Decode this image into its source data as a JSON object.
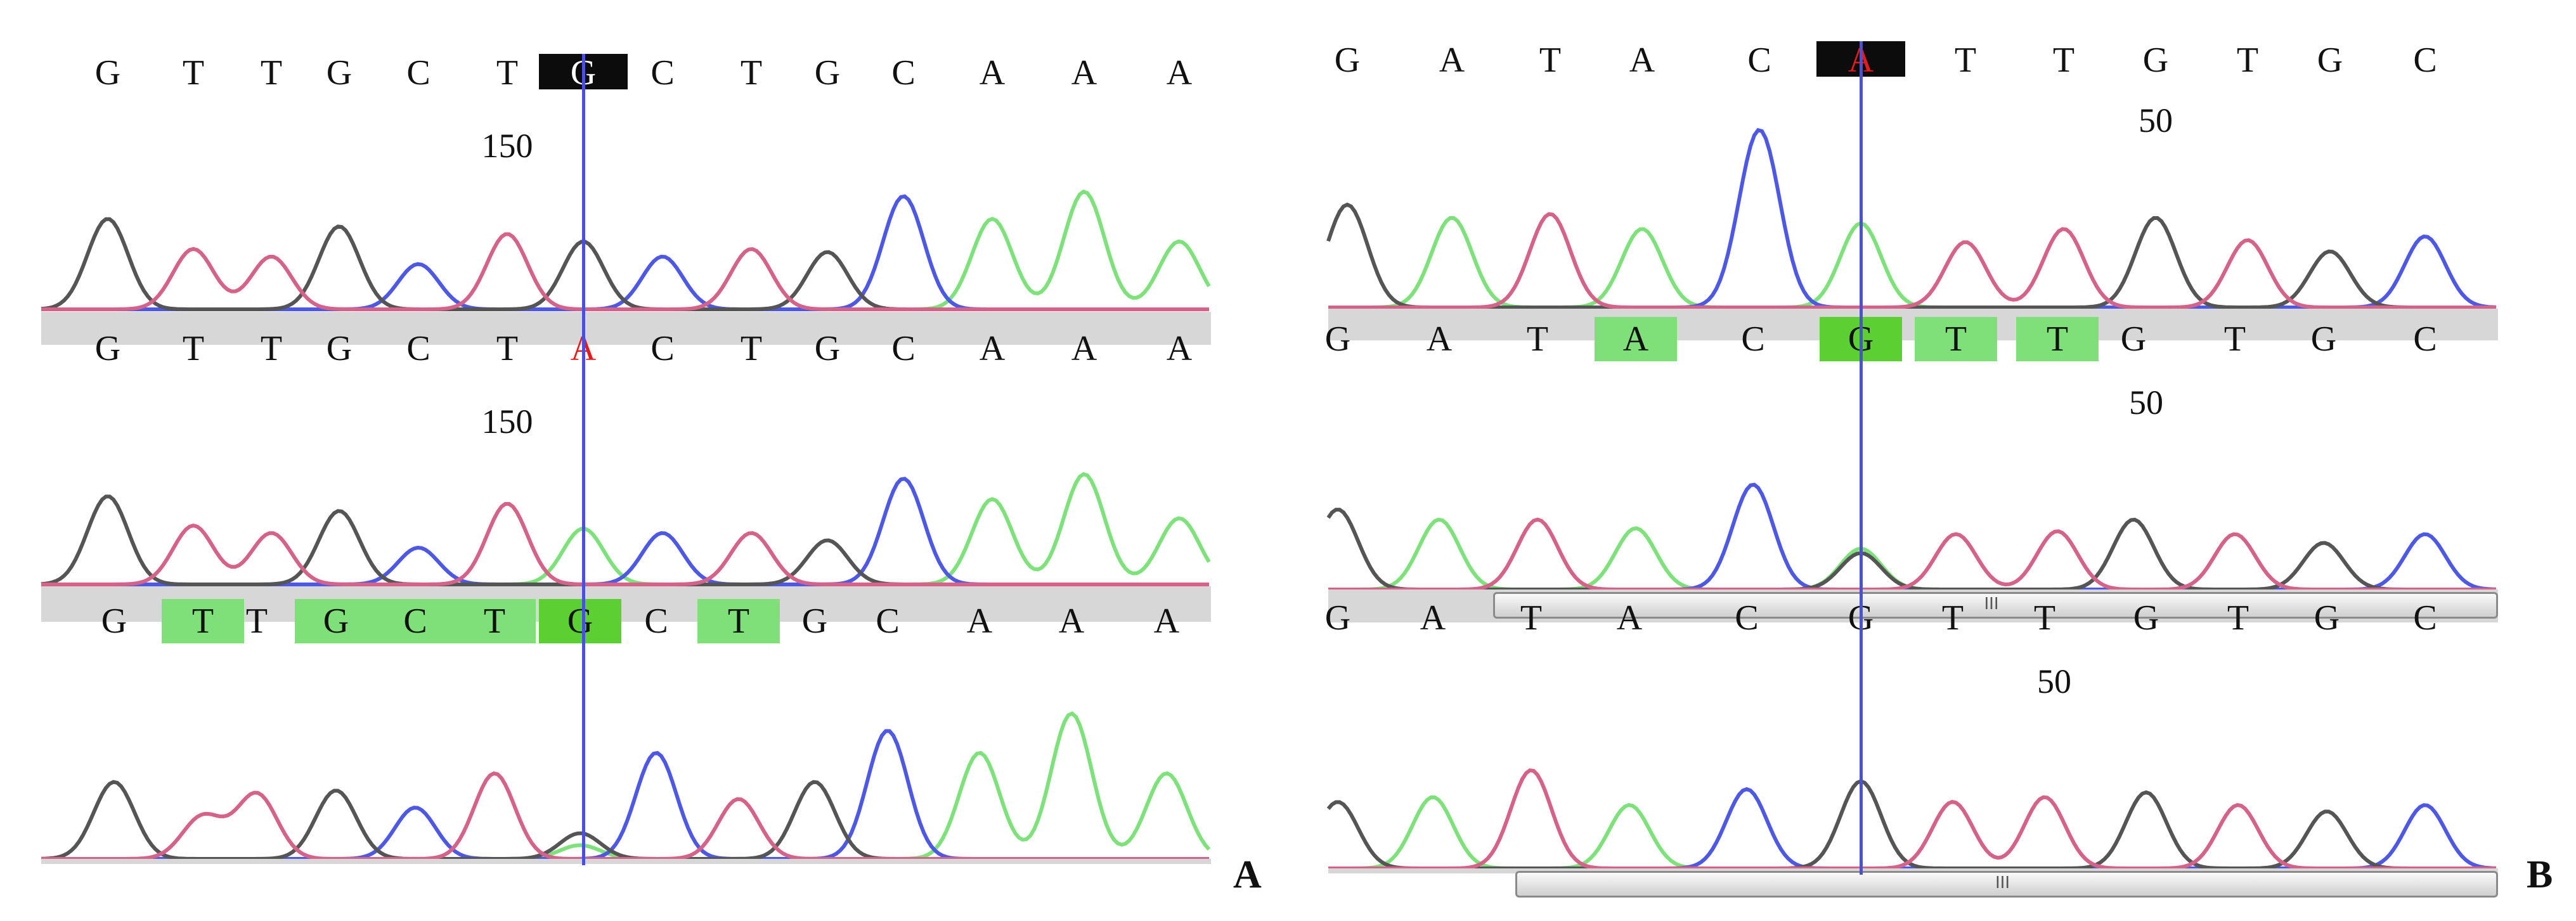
{
  "colors": {
    "A": "#7ee27a",
    "C": "#4d59e6",
    "G": "#555555",
    "T": "#d6628a",
    "highlight_light": "#7fe07a",
    "highlight_strong": "#5ccf33",
    "cursor": "#4a4fe0",
    "mutation_text": "#e8191a"
  },
  "panels": [
    {
      "label": "A",
      "tracks": [
        {
          "bases": [
            "G",
            "T",
            "T",
            "G",
            "C",
            "T",
            "G",
            "C",
            "T",
            "G",
            "C",
            "A",
            "A",
            "A"
          ],
          "selected_index": 6,
          "mutant_index": null,
          "highlights": [],
          "position_label": "150",
          "has_scrollbar": false,
          "grip": ""
        },
        {
          "bases": [
            "G",
            "T",
            "T",
            "G",
            "C",
            "T",
            "A",
            "C",
            "T",
            "G",
            "C",
            "A",
            "A",
            "A"
          ],
          "selected_index": null,
          "mutant_index": 6,
          "highlights": [],
          "position_label": "150",
          "has_scrollbar": false,
          "grip": ""
        },
        {
          "bases": [
            "G",
            "T",
            "T",
            "G",
            "C",
            "T",
            "G",
            "C",
            "T",
            "G",
            "C",
            "A",
            "A",
            "A"
          ],
          "selected_index": null,
          "mutant_index": null,
          "highlights": [
            [
              1,
              "l1"
            ],
            [
              3,
              "l1"
            ],
            [
              4,
              "l1"
            ],
            [
              5,
              "l1"
            ],
            [
              6,
              "l2"
            ],
            [
              8,
              "l1"
            ]
          ],
          "position_label": "",
          "has_scrollbar": false,
          "grip": ""
        }
      ]
    },
    {
      "label": "B",
      "tracks": [
        {
          "bases": [
            "G",
            "A",
            "T",
            "A",
            "C",
            "A",
            "T",
            "T",
            "G",
            "T",
            "G",
            "C"
          ],
          "selected_index": 5,
          "mutant_index": 5,
          "highlights": [],
          "position_label": "50",
          "has_scrollbar": false,
          "grip": ""
        },
        {
          "bases": [
            "G",
            "A",
            "T",
            "A",
            "C",
            "G",
            "T",
            "T",
            "G",
            "T",
            "G",
            "C"
          ],
          "selected_index": null,
          "mutant_index": null,
          "highlights": [
            [
              3,
              "l1"
            ],
            [
              5,
              "l2"
            ],
            [
              6,
              "l1"
            ],
            [
              7,
              "l1"
            ]
          ],
          "position_label": "50",
          "has_scrollbar": true,
          "grip": "III"
        },
        {
          "bases": [
            "G",
            "A",
            "T",
            "A",
            "C",
            "G",
            "T",
            "T",
            "G",
            "T",
            "G",
            "C"
          ],
          "selected_index": null,
          "mutant_index": null,
          "highlights": [],
          "position_label": "50",
          "has_scrollbar": true,
          "grip": "III"
        }
      ]
    }
  ]
}
